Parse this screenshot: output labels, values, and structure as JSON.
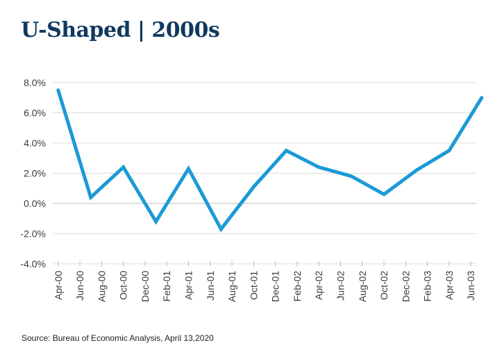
{
  "title": "U-Shaped | 2000s",
  "source": "Source: Bureau of Economic Analysis, April 13,2020",
  "chart_data": {
    "type": "line",
    "title": "U-Shaped | 2000s",
    "xlabel": "",
    "ylabel": "",
    "x": [
      "Apr-00",
      "Jul-00",
      "Oct-00",
      "Jan-01",
      "Apr-01",
      "Jul-01",
      "Oct-01",
      "Jan-02",
      "Apr-02",
      "Jul-02",
      "Oct-02",
      "Jan-03",
      "Apr-03",
      "Jul-03"
    ],
    "series": [
      {
        "values": [
          7.5,
          0.4,
          2.4,
          -1.2,
          2.3,
          -1.7,
          1.1,
          3.5,
          2.4,
          1.8,
          0.6,
          2.2,
          3.5,
          7.0
        ]
      }
    ],
    "x_tick_labels": [
      "Apr-00",
      "Jun-00",
      "Aug-00",
      "Oct-00",
      "Dec-00",
      "Feb-01",
      "Apr-01",
      "Jun-01",
      "Aug-01",
      "Oct-01",
      "Dec-01",
      "Feb-02",
      "Apr-02",
      "Jun-02",
      "Aug-02",
      "Oct-02",
      "Dec-02",
      "Feb-03",
      "Apr-03",
      "Jun-03"
    ],
    "y_ticks": [
      8,
      6,
      4,
      2,
      0,
      -2,
      -4
    ],
    "y_tick_labels": [
      "8.0%",
      "6.0%",
      "4.0%",
      "2.0%",
      "0.0%",
      "-2.0%",
      "-4.0%"
    ],
    "ylim": [
      -4,
      8
    ],
    "grid": true,
    "legend": "none",
    "line_color": "#1b9ad6",
    "grid_color": "#dcdcdc",
    "axis_color": "#bfbfbf",
    "title_color": "#12395f"
  }
}
